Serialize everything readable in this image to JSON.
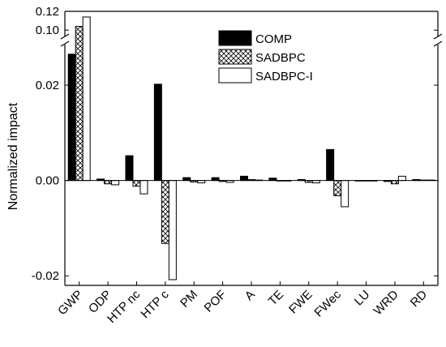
{
  "chart_data": {
    "type": "bar",
    "ylabel": "Normalized impact",
    "xlabel": "",
    "categories": [
      "GWP",
      "ODP",
      "HTP nc",
      "HTP c",
      "PM",
      "POF",
      "A",
      "TE",
      "FWE",
      "FWec",
      "LU",
      "WRD",
      "RD"
    ],
    "series": [
      {
        "name": "COMP",
        "fill": "solid",
        "color": "#000000",
        "values": [
          0.0265,
          0.0003,
          0.0052,
          0.0202,
          0.0006,
          0.0006,
          0.0009,
          0.0005,
          0.0002,
          0.0065,
          0.0,
          -0.0002,
          0.0002
        ]
      },
      {
        "name": "SADBPC",
        "fill": "crosshatch",
        "color": "#000000",
        "values": [
          0.104,
          -0.0007,
          -0.0012,
          -0.0132,
          -0.0003,
          -0.0002,
          0.0002,
          -0.0001,
          -0.0004,
          -0.0032,
          0.0,
          -0.0007,
          0.0001
        ]
      },
      {
        "name": "SADBPC-I",
        "fill": "white",
        "color": "#000000",
        "values": [
          0.114,
          -0.0009,
          -0.0028,
          -0.0208,
          -0.0005,
          -0.0004,
          0.0001,
          -0.0001,
          -0.0005,
          -0.0055,
          0.0,
          0.0009,
          0.0001
        ]
      }
    ],
    "y_axis": {
      "broken": true,
      "lower_range": [
        -0.022,
        0.028
      ],
      "upper_range": [
        0.095,
        0.12
      ],
      "ticks": [
        {
          "value": -0.02,
          "label": "-0.02"
        },
        {
          "value": 0.0,
          "label": "0.00"
        },
        {
          "value": 0.02,
          "label": "0.02"
        },
        {
          "value": 0.1,
          "label": "0.10"
        },
        {
          "value": 0.12,
          "label": "0.12"
        }
      ]
    },
    "legend": {
      "position": "top-right",
      "entries": [
        "COMP",
        "SADBPC",
        "SADBPC-I"
      ]
    },
    "grid": false
  }
}
